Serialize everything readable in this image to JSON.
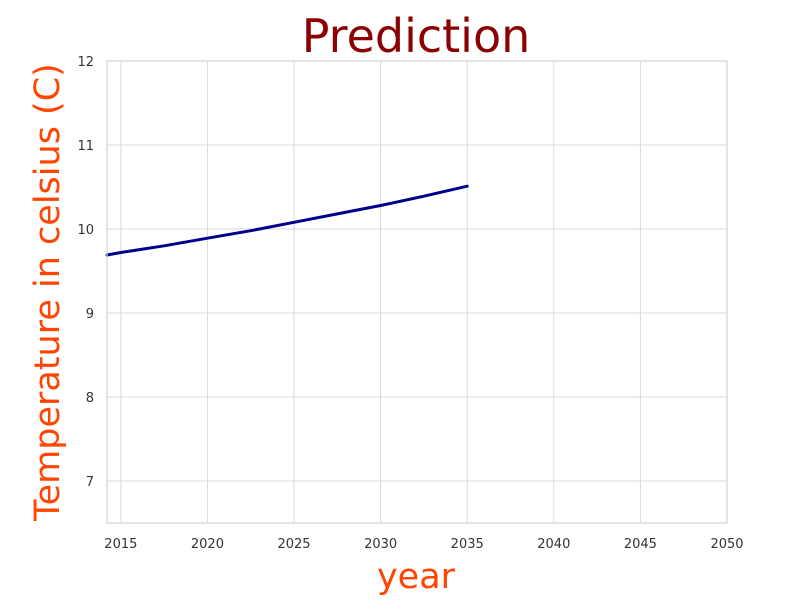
{
  "chart_data": {
    "type": "line",
    "title": "Prediction",
    "xlabel": "year",
    "ylabel": "Temperature in celsius (C)",
    "xlim": [
      2014.2,
      2050
    ],
    "ylim": [
      6.5,
      12
    ],
    "x_ticks": [
      "2015",
      "2020",
      "2025",
      "2030",
      "2035",
      "2040",
      "2045",
      "2050"
    ],
    "y_ticks": [
      "7",
      "8",
      "9",
      "10",
      "11",
      "12"
    ],
    "grid": true,
    "series": [
      {
        "x": [
          2014.2,
          2015,
          2017.5,
          2020,
          2022.5,
          2025,
          2027.5,
          2030,
          2032.5,
          2035
        ],
        "y": [
          9.69,
          9.72,
          9.8,
          9.89,
          9.98,
          10.08,
          10.18,
          10.28,
          10.39,
          10.51
        ]
      }
    ],
    "colors": {
      "title": "#8b0000",
      "axis_labels": "#ff4500",
      "line": "#00008b",
      "grid": "#d9d9d9",
      "frame": "#d3d3d3"
    }
  }
}
